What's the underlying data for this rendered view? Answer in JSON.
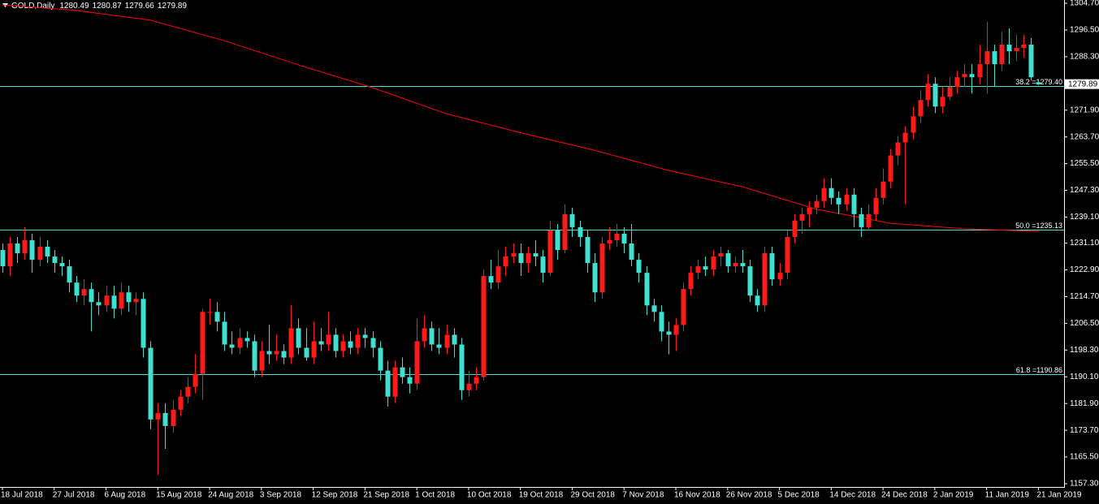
{
  "chart_data": {
    "type": "candlestick",
    "title": "GOLD,Daily",
    "up_color": "#ff1a1a",
    "down_color": "#40e0d0",
    "categories": [
      "18 Jul 2018",
      null,
      null,
      null,
      null,
      null,
      null,
      "27 Jul 2018",
      null,
      null,
      null,
      null,
      null,
      null,
      "6 Aug 2018",
      null,
      null,
      null,
      null,
      null,
      null,
      "15 Aug 2018",
      null,
      null,
      null,
      null,
      null,
      null,
      "24 Aug 2018",
      null,
      null,
      null,
      null,
      null,
      null,
      "3 Sep 2018",
      null,
      null,
      null,
      null,
      null,
      null,
      "12 Sep 2018",
      null,
      null,
      null,
      null,
      null,
      null,
      "21 Sep 2018",
      null,
      null,
      null,
      null,
      null,
      null,
      "1 Oct 2018",
      null,
      null,
      null,
      null,
      null,
      null,
      "10 Oct 2018",
      null,
      null,
      null,
      null,
      null,
      null,
      "19 Oct 2018",
      null,
      null,
      null,
      null,
      null,
      null,
      "29 Oct 2018",
      null,
      null,
      null,
      null,
      null,
      null,
      "7 Nov 2018",
      null,
      null,
      null,
      null,
      null,
      null,
      "16 Nov 2018",
      null,
      null,
      null,
      null,
      null,
      null,
      "26 Nov 2018",
      null,
      null,
      null,
      null,
      null,
      null,
      "5 Dec 2018",
      null,
      null,
      null,
      null,
      null,
      null,
      "14 Dec 2018",
      null,
      null,
      null,
      null,
      null,
      null,
      "24 Dec 2018",
      null,
      null,
      null,
      null,
      null,
      null,
      "2 Jan 2019",
      null,
      null,
      null,
      null,
      null,
      null,
      "11 Jan 2019",
      null,
      null,
      null,
      null,
      null,
      null,
      "21 Jan 2019"
    ],
    "open": [
      1229,
      1224,
      1231,
      1228,
      1232,
      1226,
      1230,
      1227,
      1225,
      1224,
      1219,
      1215,
      1217,
      1213,
      1212,
      1215,
      1211,
      1216,
      1213,
      1214,
      1199,
      1177,
      1179,
      1175,
      1180,
      1184,
      1187,
      1191,
      1210,
      1210,
      1207,
      1200,
      1199,
      1202,
      1201,
      1192,
      1198,
      1197,
      1198,
      1196,
      1205,
      1199,
      1196,
      1201,
      1200,
      1203,
      1198,
      1201,
      1199,
      1203,
      1202,
      1199,
      1192,
      1184,
      1193,
      1190,
      1188,
      1201,
      1205,
      1200,
      1199,
      1203,
      1200,
      1186,
      1188,
      1190,
      1221,
      1219,
      1224,
      1227,
      1228,
      1225,
      1228,
      1227,
      1222,
      1235,
      1229,
      1240,
      1236,
      1233,
      1225,
      1216,
      1231,
      1232,
      1234,
      1231,
      1226,
      1222,
      1212,
      1210,
      1204,
      1203,
      1206,
      1217,
      1222,
      1224,
      1223,
      1227,
      1228,
      1224,
      1225,
      1224,
      1215,
      1212,
      1228,
      1220,
      1222,
      1233,
      1238,
      1240,
      1242,
      1244,
      1248,
      1245,
      1243,
      1246,
      1240,
      1236,
      1240,
      1245,
      1250,
      1258,
      1262,
      1265,
      1270,
      1275,
      1280,
      1273,
      1276,
      1279,
      1282,
      1283,
      1282,
      1286,
      1290,
      1286,
      1292,
      1290,
      1291,
      1292,
      1280.49
    ],
    "high": [
      1231,
      1233,
      1233,
      1236,
      1234,
      1233,
      1232,
      1229,
      1227,
      1226,
      1221,
      1220,
      1219,
      1216,
      1218,
      1218,
      1219,
      1218,
      1216,
      1216,
      1201,
      1182,
      1182,
      1183,
      1186,
      1190,
      1197,
      1211,
      1214,
      1213,
      1210,
      1204,
      1205,
      1204,
      1203,
      1201,
      1206,
      1203,
      1200,
      1212,
      1208,
      1205,
      1207,
      1205,
      1210,
      1205,
      1203,
      1204,
      1205,
      1205,
      1204,
      1201,
      1195,
      1195,
      1196,
      1193,
      1208,
      1209,
      1207,
      1205,
      1206,
      1205,
      1202,
      1192,
      1193,
      1223,
      1226,
      1229,
      1230,
      1231,
      1231,
      1230,
      1232,
      1229,
      1238,
      1237,
      1243,
      1242,
      1238,
      1235,
      1228,
      1233,
      1236,
      1237,
      1236,
      1237,
      1228,
      1224,
      1214,
      1212,
      1207,
      1208,
      1219,
      1224,
      1226,
      1227,
      1229,
      1230,
      1229,
      1227,
      1229,
      1226,
      1217,
      1230,
      1230,
      1225,
      1235,
      1240,
      1242,
      1244,
      1246,
      1251,
      1251,
      1247,
      1248,
      1248,
      1242,
      1243,
      1248,
      1254,
      1260,
      1264,
      1267,
      1273,
      1278,
      1283,
      1282,
      1279,
      1282,
      1284,
      1286,
      1286,
      1292,
      1299,
      1292,
      1296,
      1297,
      1295,
      1295,
      1294,
      1280.87
    ],
    "low": [
      1222,
      1221,
      1225,
      1226,
      1222,
      1224,
      1225,
      1222,
      1221,
      1216,
      1213,
      1212,
      1204,
      1209,
      1210,
      1208,
      1209,
      1210,
      1209,
      1196,
      1174,
      1160,
      1168,
      1173,
      1178,
      1182,
      1185,
      1183,
      1206,
      1204,
      1198,
      1197,
      1197,
      1199,
      1190,
      1190,
      1194,
      1195,
      1194,
      1194,
      1197,
      1195,
      1194,
      1198,
      1198,
      1196,
      1196,
      1197,
      1197,
      1199,
      1196,
      1189,
      1181,
      1182,
      1188,
      1185,
      1186,
      1199,
      1198,
      1197,
      1197,
      1196,
      1183,
      1184,
      1186,
      1189,
      1217,
      1217,
      1221,
      1225,
      1221,
      1222,
      1224,
      1219,
      1221,
      1226,
      1228,
      1233,
      1230,
      1222,
      1213,
      1214,
      1229,
      1230,
      1228,
      1224,
      1219,
      1209,
      1207,
      1201,
      1197,
      1198,
      1204,
      1215,
      1220,
      1221,
      1221,
      1224,
      1222,
      1222,
      1222,
      1213,
      1210,
      1210,
      1218,
      1218,
      1220,
      1231,
      1234,
      1236,
      1240,
      1242,
      1243,
      1240,
      1241,
      1236,
      1233,
      1235,
      1238,
      1243,
      1248,
      1255,
      1243,
      1263,
      1268,
      1273,
      1271,
      1271,
      1275,
      1277,
      1279,
      1277,
      1280,
      1277,
      1279,
      1284,
      1286,
      1287,
      1288,
      1281,
      1279.66
    ],
    "close": [
      1224,
      1231,
      1228,
      1232,
      1226,
      1230,
      1227,
      1225,
      1224,
      1219,
      1215,
      1217,
      1213,
      1212,
      1215,
      1211,
      1216,
      1213,
      1214,
      1199,
      1177,
      1179,
      1175,
      1180,
      1184,
      1187,
      1191,
      1210,
      1210,
      1207,
      1200,
      1199,
      1202,
      1201,
      1192,
      1198,
      1197,
      1198,
      1196,
      1205,
      1199,
      1196,
      1201,
      1200,
      1203,
      1198,
      1201,
      1199,
      1203,
      1202,
      1199,
      1192,
      1184,
      1193,
      1190,
      1188,
      1201,
      1205,
      1200,
      1199,
      1203,
      1200,
      1186,
      1188,
      1190,
      1221,
      1219,
      1224,
      1227,
      1228,
      1225,
      1228,
      1227,
      1222,
      1235,
      1229,
      1240,
      1236,
      1233,
      1225,
      1216,
      1231,
      1232,
      1234,
      1231,
      1226,
      1222,
      1212,
      1210,
      1204,
      1203,
      1206,
      1217,
      1222,
      1224,
      1223,
      1227,
      1228,
      1224,
      1225,
      1224,
      1215,
      1212,
      1228,
      1220,
      1222,
      1233,
      1238,
      1240,
      1242,
      1244,
      1248,
      1245,
      1243,
      1246,
      1240,
      1236,
      1240,
      1245,
      1250,
      1258,
      1262,
      1265,
      1270,
      1275,
      1280,
      1273,
      1276,
      1279,
      1282,
      1283,
      1282,
      1286,
      1290,
      1286,
      1292,
      1290,
      1291,
      1292,
      1282,
      1279.89
    ],
    "ma": {
      "color": "#ff0000",
      "x": [
        0,
        10,
        20,
        30,
        40,
        50,
        60,
        70,
        80,
        90,
        100,
        110,
        120,
        130,
        140
      ],
      "values": [
        1304.2,
        1302.5,
        1299.5,
        1293.2,
        1285.8,
        1278.8,
        1270.8,
        1265,
        1259.6,
        1253.4,
        1248.4,
        1241.5,
        1237.2,
        1235.5,
        1234.7
      ]
    },
    "levels": [
      {
        "value": 1279.4,
        "label": "38.2 =1279.40"
      },
      {
        "value": 1235.13,
        "label": "50.0 =1235.13"
      },
      {
        "value": 1190.86,
        "label": "61.8 =1190.86"
      }
    ],
    "level_color": "#40e0d0",
    "ylim": [
      1156.3,
      1305.7
    ],
    "yticks": [
      {
        "value": 1304.7,
        "label": "1304.70"
      },
      {
        "value": 1296.5,
        "label": "1296.50"
      },
      {
        "value": 1288.3,
        "label": "1288.30"
      },
      {
        "value": 1271.9,
        "label": "1271.90"
      },
      {
        "value": 1263.7,
        "label": "1263.70"
      },
      {
        "value": 1255.5,
        "label": "1255.50"
      },
      {
        "value": 1247.3,
        "label": "1247.30"
      },
      {
        "value": 1239.1,
        "label": "1239.10"
      },
      {
        "value": 1231.1,
        "label": "1231.10"
      },
      {
        "value": 1222.9,
        "label": "1222.90"
      },
      {
        "value": 1214.7,
        "label": "1214.70"
      },
      {
        "value": 1206.5,
        "label": "1206.50"
      },
      {
        "value": 1198.3,
        "label": "1198.30"
      },
      {
        "value": 1190.1,
        "label": "1190.10"
      },
      {
        "value": 1181.9,
        "label": "1181.90"
      },
      {
        "value": 1173.7,
        "label": "1173.70"
      },
      {
        "value": 1165.5,
        "label": "1165.50"
      },
      {
        "value": 1157.3,
        "label": "1157.30"
      }
    ],
    "grid": false
  }
}
